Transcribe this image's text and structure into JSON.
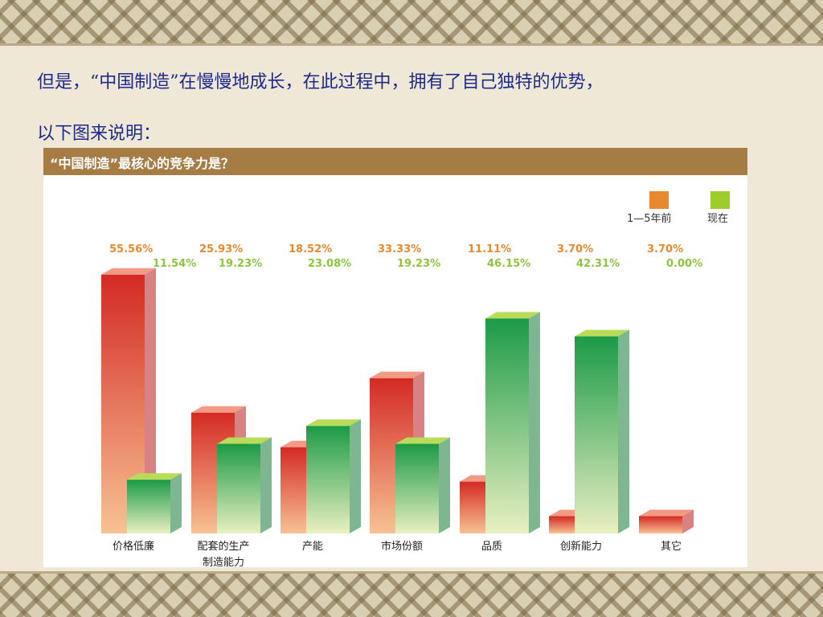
{
  "intro": {
    "line1": "但是，“中国制造”在慢慢地成长，在此过程中，拥有了自己独特的优势，",
    "line2": "以下图来说明："
  },
  "colors": {
    "before_top": "#d42a24",
    "before_bottom": "#f7c293",
    "now_top": "#1c9a47",
    "now_bottom": "#e9f0c0",
    "before_legend": "#e8892e",
    "now_legend": "#9ccd2a",
    "header": "#a67c45",
    "label_before": "#e8892e",
    "label_now": "#8cc63f"
  },
  "chart_data": {
    "type": "bar",
    "title": "“中国制造”最核心的竞争力是？",
    "legend": {
      "placement": "top-right",
      "entries": [
        "1—5年前",
        "现在"
      ]
    },
    "categories": [
      [
        "价格低廉"
      ],
      [
        "配套的生产",
        "制造能力"
      ],
      [
        "产能"
      ],
      [
        "市场份额"
      ],
      [
        "品质"
      ],
      [
        "创新能力"
      ],
      [
        "其它"
      ]
    ],
    "series": [
      {
        "name": "1—5年前",
        "values": [
          55.56,
          25.93,
          18.52,
          33.33,
          11.11,
          3.7,
          3.7
        ],
        "labels": [
          "55.56%",
          "25.93%",
          "18.52%",
          "33.33%",
          "11.11%",
          "3.70%",
          "3.70%"
        ]
      },
      {
        "name": "现在",
        "values": [
          11.54,
          19.23,
          23.08,
          19.23,
          46.15,
          42.31,
          0.0
        ],
        "labels": [
          "11.54%",
          "19.23%",
          "23.08%",
          "19.23%",
          "46.15%",
          "42.31%",
          "0.00%"
        ]
      }
    ],
    "ylim": [
      0,
      60
    ],
    "grid": false
  }
}
